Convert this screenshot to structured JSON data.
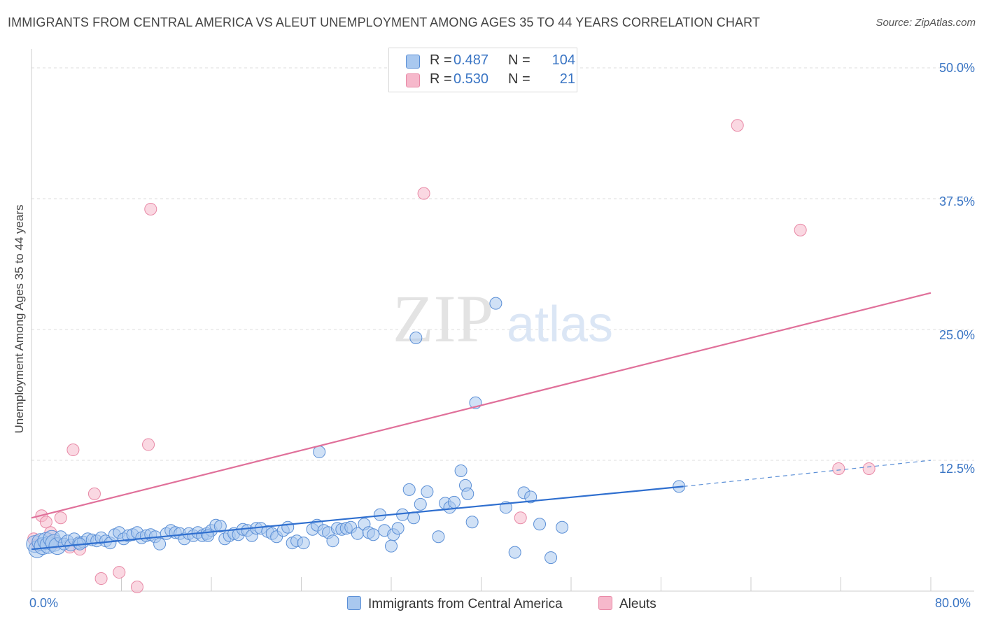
{
  "header": {
    "title": "IMMIGRANTS FROM CENTRAL AMERICA VS ALEUT UNEMPLOYMENT AMONG AGES 35 TO 44 YEARS CORRELATION CHART",
    "source": "Source: ZipAtlas.com"
  },
  "watermark": {
    "zip": "ZIP",
    "atlas": "atlas"
  },
  "legend": {
    "r_label": "R =",
    "n_label": "N =",
    "series": [
      {
        "name": "Immigrants from Central America",
        "r": "0.487",
        "n": "104"
      },
      {
        "name": "Aleuts",
        "r": "0.530",
        "n": "21"
      }
    ]
  },
  "colors": {
    "blue_fill": "#a9c8ef",
    "blue_stroke": "#5b8fd6",
    "blue_line": "#2f6fcf",
    "pink_fill": "#f6b8cb",
    "pink_stroke": "#e889a6",
    "pink_line": "#e0709a",
    "tick_text": "#3a75c4",
    "grid": "#dddddd"
  },
  "chart_data": {
    "type": "scatter",
    "ylabel": "Unemployment Among Ages 35 to 44 years",
    "xlabel": "",
    "xlim": [
      0,
      80
    ],
    "ylim": [
      0,
      52
    ],
    "y_ticks": [
      {
        "value": 12.5,
        "label": "12.5%"
      },
      {
        "value": 25.0,
        "label": "25.0%"
      },
      {
        "value": 37.5,
        "label": "37.5%"
      },
      {
        "value": 50.0,
        "label": "50.0%"
      }
    ],
    "x_tick_labels": [
      {
        "value": 0,
        "label": "0.0%"
      },
      {
        "value": 80,
        "label": "80.0%"
      }
    ],
    "x_minor_ticks": [
      8,
      16,
      24,
      32,
      40,
      48,
      56,
      64,
      72,
      80
    ],
    "grid": true,
    "legend_position": "top-center",
    "series": [
      {
        "name": "Immigrants from Central America",
        "points": [
          [
            0.3,
            4.5
          ],
          [
            0.5,
            4.0
          ],
          [
            0.8,
            4.7
          ],
          [
            1.0,
            4.3
          ],
          [
            1.3,
            4.8
          ],
          [
            1.5,
            4.4
          ],
          [
            1.8,
            5.0
          ],
          [
            2.0,
            4.6
          ],
          [
            2.3,
            4.3
          ],
          [
            2.6,
            5.2
          ],
          [
            2.9,
            4.5
          ],
          [
            3.2,
            4.8
          ],
          [
            3.5,
            4.4
          ],
          [
            3.8,
            5.0
          ],
          [
            4.2,
            4.6
          ],
          [
            4.6,
            4.7
          ],
          [
            5.0,
            5.0
          ],
          [
            5.4,
            4.9
          ],
          [
            5.8,
            4.8
          ],
          [
            6.2,
            5.1
          ],
          [
            6.6,
            4.8
          ],
          [
            7.0,
            4.6
          ],
          [
            7.4,
            5.4
          ],
          [
            7.8,
            5.6
          ],
          [
            8.2,
            5.0
          ],
          [
            8.6,
            5.3
          ],
          [
            9.0,
            5.4
          ],
          [
            9.4,
            5.6
          ],
          [
            9.8,
            5.1
          ],
          [
            10.2,
            5.3
          ],
          [
            10.6,
            5.4
          ],
          [
            11.0,
            5.2
          ],
          [
            11.4,
            4.5
          ],
          [
            12.0,
            5.5
          ],
          [
            12.4,
            5.8
          ],
          [
            12.8,
            5.6
          ],
          [
            13.2,
            5.5
          ],
          [
            13.6,
            5.0
          ],
          [
            14.0,
            5.5
          ],
          [
            14.4,
            5.3
          ],
          [
            14.8,
            5.6
          ],
          [
            15.2,
            5.3
          ],
          [
            15.6,
            5.5
          ],
          [
            16.0,
            5.8
          ],
          [
            16.4,
            6.3
          ],
          [
            16.8,
            6.2
          ],
          [
            17.2,
            5.0
          ],
          [
            17.6,
            5.3
          ],
          [
            18.0,
            5.5
          ],
          [
            18.4,
            5.4
          ],
          [
            18.8,
            5.9
          ],
          [
            19.2,
            5.8
          ],
          [
            19.6,
            5.3
          ],
          [
            20.0,
            6.0
          ],
          [
            20.4,
            6.0
          ],
          [
            21.0,
            5.7
          ],
          [
            21.4,
            5.5
          ],
          [
            21.8,
            5.2
          ],
          [
            22.4,
            5.8
          ],
          [
            22.8,
            6.1
          ],
          [
            23.2,
            4.6
          ],
          [
            23.6,
            4.8
          ],
          [
            24.2,
            4.6
          ],
          [
            25.0,
            5.9
          ],
          [
            25.4,
            6.3
          ],
          [
            26.0,
            5.8
          ],
          [
            26.4,
            5.6
          ],
          [
            26.8,
            4.8
          ],
          [
            27.2,
            6.0
          ],
          [
            27.6,
            5.9
          ],
          [
            28.0,
            6.0
          ],
          [
            28.4,
            6.1
          ],
          [
            29.0,
            5.5
          ],
          [
            29.6,
            6.4
          ],
          [
            30.0,
            5.6
          ],
          [
            30.4,
            5.4
          ],
          [
            31.0,
            7.3
          ],
          [
            31.4,
            5.8
          ],
          [
            32.2,
            5.4
          ],
          [
            32.6,
            6.0
          ],
          [
            33.0,
            7.3
          ],
          [
            33.6,
            9.7
          ],
          [
            34.0,
            7.0
          ],
          [
            34.6,
            8.3
          ],
          [
            35.2,
            9.5
          ],
          [
            36.2,
            5.2
          ],
          [
            36.8,
            8.4
          ],
          [
            37.2,
            8.0
          ],
          [
            37.6,
            8.5
          ],
          [
            38.2,
            11.5
          ],
          [
            38.6,
            10.1
          ],
          [
            38.8,
            9.3
          ],
          [
            39.2,
            6.6
          ],
          [
            42.2,
            8.0
          ],
          [
            43.0,
            3.7
          ],
          [
            43.8,
            9.4
          ],
          [
            44.4,
            9.0
          ],
          [
            45.2,
            6.4
          ],
          [
            46.2,
            3.2
          ],
          [
            47.2,
            6.1
          ],
          [
            57.6,
            10.0
          ],
          [
            25.6,
            13.3
          ],
          [
            34.2,
            24.2
          ],
          [
            39.5,
            18.0
          ],
          [
            41.3,
            27.5
          ],
          [
            15.7,
            5.3
          ],
          [
            4.3,
            4.5
          ],
          [
            32.0,
            4.3
          ]
        ]
      },
      {
        "name": "Aleuts",
        "points": [
          [
            0.2,
            5.0
          ],
          [
            0.5,
            4.4
          ],
          [
            0.9,
            7.2
          ],
          [
            1.3,
            6.6
          ],
          [
            1.7,
            5.6
          ],
          [
            2.1,
            4.6
          ],
          [
            2.6,
            7.0
          ],
          [
            3.4,
            4.2
          ],
          [
            3.7,
            13.5
          ],
          [
            4.3,
            4.0
          ],
          [
            5.6,
            9.3
          ],
          [
            6.2,
            1.2
          ],
          [
            7.8,
            1.8
          ],
          [
            9.4,
            0.4
          ],
          [
            10.4,
            14.0
          ],
          [
            10.6,
            36.5
          ],
          [
            43.5,
            7.0
          ],
          [
            34.9,
            38.0
          ],
          [
            62.8,
            44.5
          ],
          [
            68.4,
            34.5
          ],
          [
            71.8,
            11.7
          ],
          [
            74.5,
            11.7
          ]
        ]
      }
    ],
    "trendlines": [
      {
        "series": "Immigrants from Central America",
        "from": [
          0,
          4.0
        ],
        "to": [
          58,
          10.0
        ],
        "dashed_to": [
          80,
          12.5
        ]
      },
      {
        "series": "Aleuts",
        "from": [
          0,
          7.0
        ],
        "to": [
          80,
          28.5
        ]
      }
    ]
  }
}
